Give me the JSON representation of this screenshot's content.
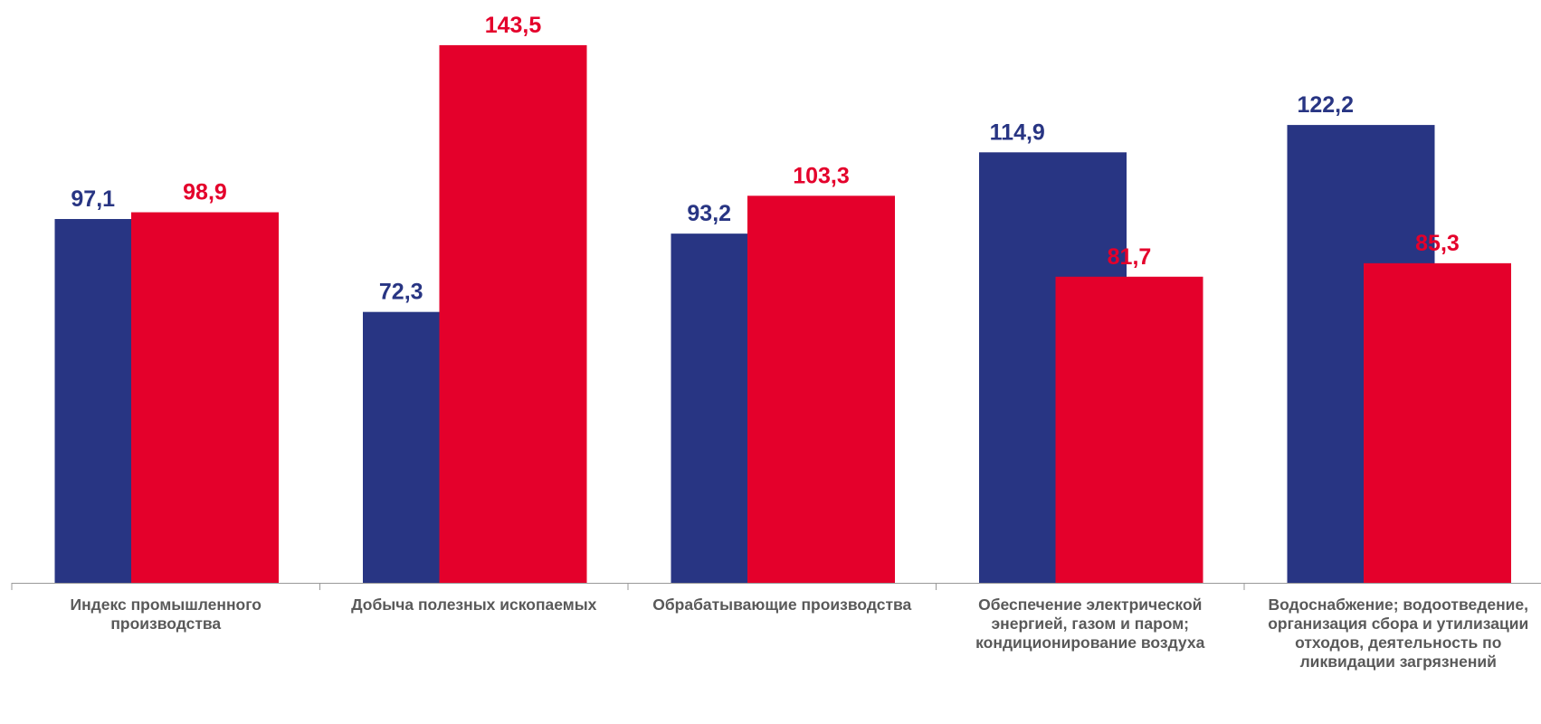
{
  "chart_data": {
    "type": "bar",
    "categories": [
      "Индекс промышленного производства",
      "Добыча полезных ископаемых",
      "Обрабатывающие производства",
      "Обеспечение электрической энергией, газом и паром; кондиционирование воздуха",
      "Водоснабжение; водоотведение, организация  сбора и утилизации отходов, деятельность  по ликвидации загрязнений"
    ],
    "series": [
      {
        "color": "#283583",
        "values": [
          97.1,
          72.3,
          93.2,
          114.9,
          122.2
        ],
        "value_labels": [
          "97,1",
          "72,3",
          "93,2",
          "114,9",
          "122,2"
        ]
      },
      {
        "color": "#e4002b",
        "values": [
          98.9,
          143.5,
          103.3,
          81.7,
          85.3
        ],
        "value_labels": [
          "98,9",
          "143,5",
          "103,3",
          "81,7",
          "85,3"
        ]
      }
    ]
  }
}
